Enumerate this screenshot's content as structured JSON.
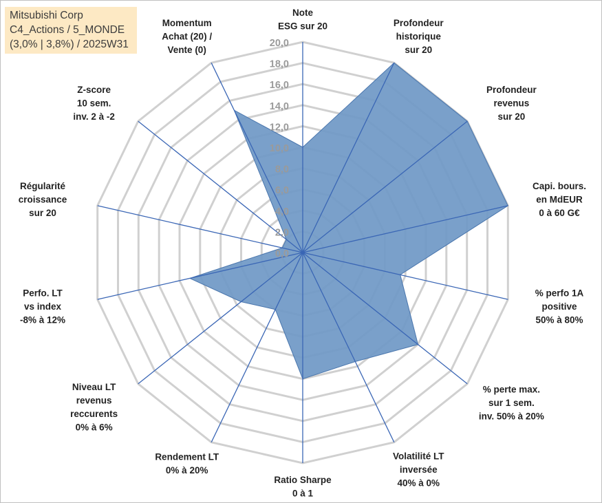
{
  "info": {
    "line1": "Mitsubishi Corp",
    "line2": "C4_Actions / 5_MONDE",
    "line3": "(3,0% | 3,8%) / 2025W31"
  },
  "colors": {
    "fill": "#6f98c5",
    "stroke": "#4a76ad",
    "grid": "#d0d0d0",
    "axis": "#3a66b5",
    "info_bg": "#fde9c4"
  },
  "chart_data": {
    "type": "radar",
    "rmin": 0,
    "rmax": 20,
    "tick_step": 2,
    "tick_labels": [
      "0,0",
      "2,0",
      "4,0",
      "6,0",
      "8,0",
      "10,0",
      "12,0",
      "14,0",
      "16,0",
      "18,0",
      "20,0"
    ],
    "grid": true,
    "categories": [
      [
        "Note",
        "ESG sur 20"
      ],
      [
        "Profondeur",
        "historique",
        "sur 20"
      ],
      [
        "Profondeur",
        "revenus",
        "sur 20"
      ],
      [
        "Capi. bours.",
        "en MdEUR",
        "0 à 60 G€"
      ],
      [
        "% perfo 1A",
        "positive",
        "50% à 80%"
      ],
      [
        "% perte max.",
        "sur 1 sem.",
        "inv. 50% à 20%"
      ],
      [
        "Volatilité LT",
        "inversée",
        "40% à 0%"
      ],
      [
        "Ratio Sharpe",
        "0 à 1"
      ],
      [
        "Rendement LT",
        "0% à 20%"
      ],
      [
        "Niveau LT",
        "revenus",
        "reccurents",
        "0% à 6%"
      ],
      [
        "Perfo. LT",
        "vs index",
        "-8% à 12%"
      ],
      [
        "Régularité",
        "croissance",
        "sur 20"
      ],
      [
        "Z-score",
        "10 sem.",
        "inv. 2 à -2"
      ],
      [
        "Momentum",
        "Achat (20) /",
        "Vente (0)"
      ]
    ],
    "values": [
      10.0,
      20.0,
      20.0,
      20.0,
      9.5,
      14.0,
      11.5,
      12.0,
      6.0,
      7.5,
      11.0,
      2.0,
      2.0,
      15.0
    ]
  }
}
